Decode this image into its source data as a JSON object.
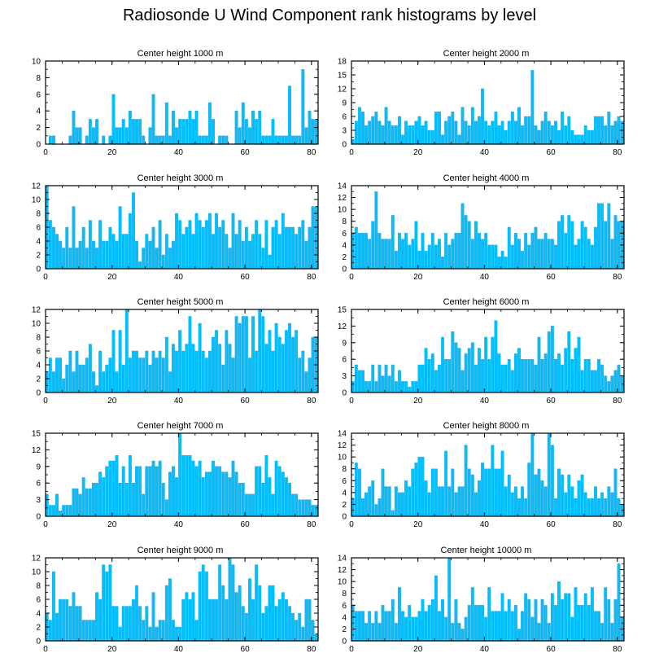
{
  "title": "Radiosonde U Wind Component rank histograms by level",
  "bar_color": "#00bfff",
  "bar_stroke": "#2aa6d8",
  "chart_data": [
    {
      "type": "bar",
      "title": "Center height 1000 m",
      "xlim": [
        0,
        82
      ],
      "ylim": [
        0,
        10
      ],
      "yticks": [
        0,
        2,
        4,
        6,
        8,
        10
      ],
      "xticks": [
        0,
        20,
        40,
        60,
        80
      ],
      "values": [
        0,
        1,
        1,
        0,
        0,
        0,
        0,
        1,
        4,
        2,
        2,
        0,
        1,
        3,
        2,
        3,
        0,
        1,
        0,
        1,
        6,
        2,
        2,
        3,
        2,
        4,
        3,
        3,
        3,
        1,
        0,
        2,
        6,
        1,
        1,
        1,
        5,
        1,
        4,
        2,
        3,
        3,
        3,
        4,
        3,
        4,
        1,
        1,
        1,
        5,
        3,
        0,
        1,
        1,
        1,
        0,
        0,
        4,
        2,
        5,
        3,
        2,
        4,
        3,
        4,
        1,
        1,
        1,
        3,
        1,
        1,
        1,
        1,
        7,
        1,
        1,
        1,
        9,
        2,
        4,
        3,
        3
      ]
    },
    {
      "type": "bar",
      "title": "Center height 2000 m",
      "xlim": [
        0,
        82
      ],
      "ylim": [
        0,
        18
      ],
      "yticks": [
        0,
        3,
        6,
        9,
        12,
        15,
        18
      ],
      "xticks": [
        0,
        20,
        40,
        60,
        80
      ],
      "values": [
        1,
        5,
        8,
        7,
        4,
        5,
        6,
        7,
        5,
        4,
        8,
        5,
        4,
        4,
        6,
        2,
        5,
        4,
        4,
        5,
        6,
        4,
        5,
        3,
        3,
        7,
        7,
        2,
        5,
        6,
        7,
        5,
        2,
        8,
        5,
        4,
        8,
        5,
        6,
        12,
        5,
        4,
        5,
        7,
        4,
        5,
        3,
        5,
        7,
        5,
        8,
        4,
        6,
        6,
        16,
        4,
        3,
        5,
        7,
        5,
        4,
        5,
        3,
        7,
        4,
        6,
        3,
        2,
        2,
        2,
        4,
        3,
        3,
        6,
        6,
        6,
        4,
        7,
        4,
        5,
        6,
        5
      ]
    },
    {
      "type": "bar",
      "title": "Center height 3000 m",
      "xlim": [
        0,
        82
      ],
      "ylim": [
        0,
        12
      ],
      "yticks": [
        0,
        2,
        4,
        6,
        8,
        10,
        12
      ],
      "xticks": [
        0,
        20,
        40,
        60,
        80
      ],
      "values": [
        12,
        7,
        6,
        5,
        4,
        3,
        6,
        3,
        9,
        3,
        4,
        6,
        3,
        7,
        4,
        3,
        7,
        4,
        4,
        6,
        5,
        4,
        9,
        5,
        5,
        8,
        11,
        4,
        1,
        3,
        5,
        4,
        6,
        3,
        7,
        2,
        5,
        3,
        4,
        8,
        7,
        5,
        6,
        7,
        5,
        8,
        7,
        6,
        7,
        8,
        5,
        8,
        6,
        7,
        5,
        3,
        8,
        5,
        7,
        4,
        6,
        4,
        5,
        7,
        5,
        3,
        7,
        2,
        6,
        7,
        5,
        8,
        6,
        6,
        6,
        5,
        6,
        7,
        4,
        6,
        9,
        9
      ]
    },
    {
      "type": "bar",
      "title": "Center height 4000 m",
      "xlim": [
        0,
        82
      ],
      "ylim": [
        0,
        14
      ],
      "yticks": [
        0,
        2,
        4,
        6,
        8,
        10,
        12,
        14
      ],
      "xticks": [
        0,
        20,
        40,
        60,
        80
      ],
      "values": [
        6,
        7,
        6,
        6,
        6,
        5,
        8,
        13,
        6,
        5,
        5,
        5,
        9,
        3,
        6,
        5,
        6,
        4,
        5,
        8,
        3,
        6,
        3,
        4,
        6,
        4,
        5,
        2,
        6,
        4,
        5,
        6,
        6,
        11,
        9,
        8,
        5,
        8,
        6,
        5,
        6,
        4,
        4,
        4,
        2,
        3,
        2,
        7,
        4,
        6,
        5,
        3,
        6,
        4,
        6,
        7,
        5,
        5,
        6,
        5,
        5,
        4,
        8,
        9,
        6,
        9,
        8,
        4,
        5,
        8,
        7,
        5,
        4,
        7,
        11,
        11,
        8,
        11,
        5,
        9,
        8,
        8
      ]
    },
    {
      "type": "bar",
      "title": "Center height 5000 m",
      "xlim": [
        0,
        82
      ],
      "ylim": [
        0,
        12
      ],
      "yticks": [
        0,
        2,
        4,
        6,
        8,
        10,
        12
      ],
      "xticks": [
        0,
        20,
        40,
        60,
        80
      ],
      "values": [
        3,
        5,
        3,
        5,
        5,
        2,
        4,
        6,
        3,
        6,
        4,
        4,
        5,
        7,
        3,
        1,
        6,
        3,
        4,
        5,
        9,
        3,
        9,
        4,
        12,
        5,
        6,
        6,
        5,
        5,
        6,
        4,
        6,
        5,
        6,
        5,
        8,
        3,
        7,
        6,
        9,
        6,
        7,
        11,
        7,
        6,
        10,
        6,
        5,
        6,
        8,
        9,
        7,
        4,
        9,
        7,
        5,
        11,
        10,
        11,
        11,
        5,
        11,
        6,
        12,
        11,
        7,
        9,
        6,
        10,
        8,
        7,
        9,
        10,
        8,
        9,
        5,
        6,
        3,
        5,
        8,
        8
      ]
    },
    {
      "type": "bar",
      "title": "Center height 6000 m",
      "xlim": [
        0,
        82
      ],
      "ylim": [
        0,
        15
      ],
      "yticks": [
        0,
        3,
        6,
        9,
        12,
        15
      ],
      "xticks": [
        0,
        20,
        40,
        60,
        80
      ],
      "values": [
        2,
        5,
        4,
        4,
        2,
        2,
        5,
        2,
        5,
        3,
        5,
        3,
        5,
        2,
        4,
        2,
        2,
        1,
        2,
        2,
        5,
        5,
        8,
        6,
        7,
        4,
        5,
        10,
        6,
        6,
        11,
        9,
        8,
        4,
        7,
        8,
        9,
        5,
        8,
        6,
        10,
        6,
        10,
        13,
        7,
        5,
        5,
        6,
        4,
        7,
        8,
        6,
        6,
        6,
        6,
        5,
        10,
        6,
        7,
        11,
        12,
        6,
        7,
        5,
        8,
        11,
        6,
        8,
        10,
        4,
        6,
        6,
        4,
        4,
        6,
        5,
        3,
        2,
        3,
        4,
        5,
        3
      ]
    },
    {
      "type": "bar",
      "title": "Center height 7000 m",
      "xlim": [
        0,
        82
      ],
      "ylim": [
        0,
        15
      ],
      "yticks": [
        0,
        3,
        6,
        9,
        12,
        15
      ],
      "xticks": [
        0,
        20,
        40,
        60,
        80
      ],
      "values": [
        4,
        2,
        2,
        4,
        1,
        2,
        2,
        2,
        5,
        5,
        4,
        7,
        5,
        5,
        6,
        6,
        8,
        7,
        9,
        10,
        10,
        11,
        6,
        9,
        6,
        11,
        6,
        9,
        9,
        4,
        9,
        9,
        10,
        9,
        10,
        6,
        3,
        8,
        9,
        7,
        15,
        11,
        11,
        11,
        10,
        9,
        10,
        7,
        8,
        8,
        10,
        9,
        9,
        8,
        8,
        7,
        10,
        8,
        6,
        6,
        4,
        4,
        4,
        9,
        9,
        6,
        11,
        7,
        4,
        10,
        9,
        8,
        7,
        6,
        4,
        4,
        3,
        3,
        3,
        3,
        2,
        2
      ]
    },
    {
      "type": "bar",
      "title": "Center height 8000 m",
      "xlim": [
        0,
        82
      ],
      "ylim": [
        0,
        14
      ],
      "yticks": [
        0,
        2,
        4,
        6,
        8,
        10,
        12,
        14
      ],
      "xticks": [
        0,
        20,
        40,
        60,
        80
      ],
      "values": [
        3,
        9,
        8,
        3,
        4,
        5,
        6,
        2,
        3,
        8,
        5,
        5,
        1,
        5,
        4,
        4,
        6,
        5,
        8,
        9,
        10,
        10,
        6,
        4,
        8,
        8,
        5,
        5,
        11,
        5,
        8,
        4,
        5,
        5,
        12,
        8,
        7,
        4,
        6,
        9,
        8,
        8,
        12,
        8,
        8,
        11,
        5,
        7,
        4,
        5,
        3,
        5,
        3,
        9,
        14,
        7,
        8,
        6,
        5,
        14,
        12,
        3,
        8,
        7,
        4,
        7,
        5,
        3,
        6,
        7,
        4,
        3,
        3,
        5,
        3,
        4,
        3,
        5,
        4,
        8,
        3,
        2
      ]
    },
    {
      "type": "bar",
      "title": "Center height 9000 m",
      "xlim": [
        0,
        82
      ],
      "ylim": [
        0,
        12
      ],
      "yticks": [
        0,
        2,
        4,
        6,
        8,
        10,
        12
      ],
      "xticks": [
        0,
        20,
        40,
        60,
        80
      ],
      "values": [
        4,
        3,
        10,
        4,
        6,
        6,
        6,
        5,
        7,
        5,
        5,
        3,
        3,
        3,
        3,
        7,
        6,
        11,
        10,
        11,
        5,
        5,
        2,
        5,
        5,
        5,
        6,
        8,
        5,
        3,
        5,
        2,
        7,
        2,
        3,
        3,
        8,
        9,
        3,
        2,
        2,
        6,
        7,
        6,
        7,
        3,
        10,
        11,
        10,
        6,
        6,
        6,
        11,
        8,
        6,
        12,
        11,
        7,
        8,
        5,
        4,
        9,
        6,
        11,
        8,
        4,
        5,
        8,
        8,
        5,
        6,
        7,
        6,
        5,
        4,
        3,
        4,
        2,
        6,
        6,
        3,
        1
      ]
    },
    {
      "type": "bar",
      "title": "Center height 10000 m",
      "xlim": [
        0,
        82
      ],
      "ylim": [
        0,
        14
      ],
      "yticks": [
        0,
        2,
        4,
        6,
        8,
        10,
        12,
        14
      ],
      "xticks": [
        0,
        20,
        40,
        60,
        80
      ],
      "values": [
        6,
        5,
        5,
        5,
        3,
        5,
        3,
        5,
        3,
        6,
        5,
        5,
        7,
        3,
        9,
        5,
        4,
        6,
        4,
        4,
        5,
        7,
        5,
        6,
        7,
        11,
        5,
        7,
        4,
        14,
        3,
        7,
        3,
        2,
        4,
        6,
        9,
        6,
        6,
        6,
        4,
        9,
        5,
        5,
        5,
        8,
        5,
        7,
        5,
        6,
        2,
        5,
        8,
        7,
        4,
        7,
        3,
        7,
        6,
        3,
        8,
        6,
        10,
        7,
        8,
        8,
        4,
        9,
        6,
        6,
        8,
        6,
        9,
        5,
        5,
        3,
        9,
        7,
        3,
        7,
        13,
        4
      ]
    }
  ]
}
